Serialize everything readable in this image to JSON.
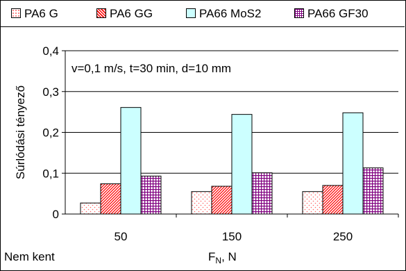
{
  "chart_data": {
    "type": "bar",
    "categories": [
      "50",
      "150",
      "250"
    ],
    "series": [
      {
        "name": "PA6 G",
        "values": [
          0.027,
          0.055,
          0.055
        ],
        "color": "#ffffff",
        "pattern": "dots"
      },
      {
        "name": "PA6 GG",
        "values": [
          0.074,
          0.068,
          0.07
        ],
        "color": "#ff0000",
        "pattern": "diagonal"
      },
      {
        "name": "PA66 MoS2",
        "values": [
          0.261,
          0.244,
          0.248
        ],
        "color": "#ccffff",
        "pattern": "solid"
      },
      {
        "name": "PA66 GF30",
        "values": [
          0.093,
          0.101,
          0.113
        ],
        "color": "#800080",
        "pattern": "grid"
      }
    ],
    "ylabel": "Súrlódási tényező",
    "xlabel_main": "F",
    "xlabel_sub": "N",
    "xlabel_tail": ", N",
    "ylim": [
      0,
      0.4
    ],
    "yticks": [
      "0",
      "0,1",
      "0,2",
      "0,3",
      "0,4"
    ],
    "annotation": "v=0,1 m/s, t=30 min, d=10 mm",
    "legend_position": "top",
    "grid": true
  },
  "footnote": "Nem kent"
}
